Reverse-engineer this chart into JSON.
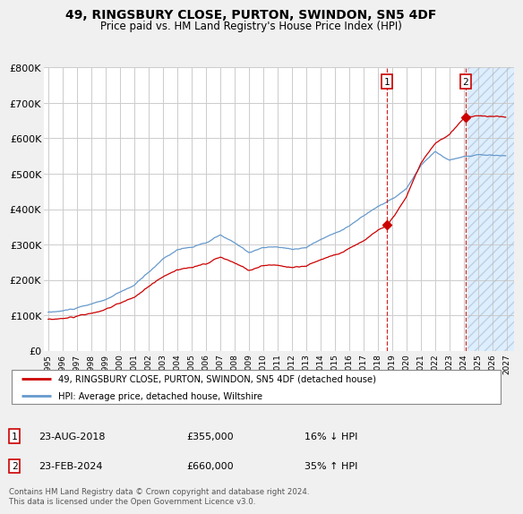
{
  "title": "49, RINGSBURY CLOSE, PURTON, SWINDON, SN5 4DF",
  "subtitle": "Price paid vs. HM Land Registry's House Price Index (HPI)",
  "footer": "Contains HM Land Registry data © Crown copyright and database right 2024.\nThis data is licensed under the Open Government Licence v3.0.",
  "legend_line1": "49, RINGSBURY CLOSE, PURTON, SWINDON, SN5 4DF (detached house)",
  "legend_line2": "HPI: Average price, detached house, Wiltshire",
  "transaction1_date": "23-AUG-2018",
  "transaction1_price": "£355,000",
  "transaction1_hpi": "16% ↓ HPI",
  "transaction2_date": "23-FEB-2024",
  "transaction2_price": "£660,000",
  "transaction2_hpi": "35% ↑ HPI",
  "red_color": "#cc0000",
  "blue_color": "#6699cc",
  "background_color": "#f0f0f0",
  "plot_bg_color": "#ffffff",
  "future_bg_color": "#ddeeff",
  "hatch_color": "#aabbcc",
  "grid_color": "#cccccc",
  "ylim": [
    0,
    800000
  ],
  "yticks": [
    0,
    100000,
    200000,
    300000,
    400000,
    500000,
    600000,
    700000,
    800000
  ],
  "ytick_labels": [
    "£0",
    "£100K",
    "£200K",
    "£300K",
    "£400K",
    "£500K",
    "£600K",
    "£700K",
    "£800K"
  ],
  "transaction1_x": 2018.63,
  "transaction1_y": 355000,
  "transaction2_x": 2024.12,
  "transaction2_y": 660000,
  "future_start_x": 2024.25,
  "xlim_start": 1994.7,
  "xlim_end": 2027.5
}
